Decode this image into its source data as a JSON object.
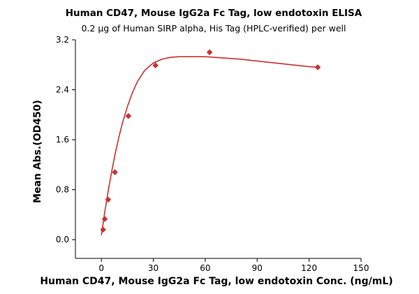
{
  "chart_data": {
    "type": "scatter",
    "title": "Human CD47, Mouse IgG2a Fc Tag, low endotoxin ELISA",
    "subtitle": "0.2 µg of Human SIRP alpha, His Tag (HPLC-verified) per well",
    "xlabel": "Human CD47, Mouse IgG2a Fc Tag, low endotoxin Conc. (ng/mL)",
    "ylabel": "Mean Abs.(OD450)",
    "xlim": [
      -15,
      150
    ],
    "ylim": [
      -0.3,
      3.2
    ],
    "xticks": [
      0,
      30,
      60,
      90,
      120,
      150
    ],
    "yticks": [
      0.0,
      0.8,
      1.6,
      2.4,
      3.2
    ],
    "ytick_labels": [
      "0.0",
      "0.8",
      "1.6",
      "2.4",
      "3.2"
    ],
    "grid": false,
    "legend": "none",
    "marker": "diamond",
    "color": "#c83232",
    "series": [
      {
        "x": [
          0.98,
          1.95,
          3.9,
          7.8,
          15.6,
          31.25,
          62.5,
          125
        ],
        "y": [
          0.16,
          0.33,
          0.64,
          1.08,
          1.98,
          2.79,
          3.0,
          2.76
        ]
      }
    ],
    "fit_curve": {
      "x": [
        0,
        1,
        2,
        3,
        4,
        6,
        8,
        10,
        12,
        15,
        18,
        21,
        25,
        30,
        35,
        40,
        45,
        50,
        55,
        60,
        65,
        70,
        80,
        90,
        100,
        110,
        120,
        125
      ],
      "y": [
        0.07,
        0.26,
        0.45,
        0.62,
        0.79,
        1.1,
        1.38,
        1.63,
        1.85,
        2.13,
        2.36,
        2.54,
        2.71,
        2.83,
        2.89,
        2.92,
        2.93,
        2.93,
        2.93,
        2.93,
        2.92,
        2.91,
        2.89,
        2.86,
        2.83,
        2.8,
        2.77,
        2.76
      ]
    }
  }
}
